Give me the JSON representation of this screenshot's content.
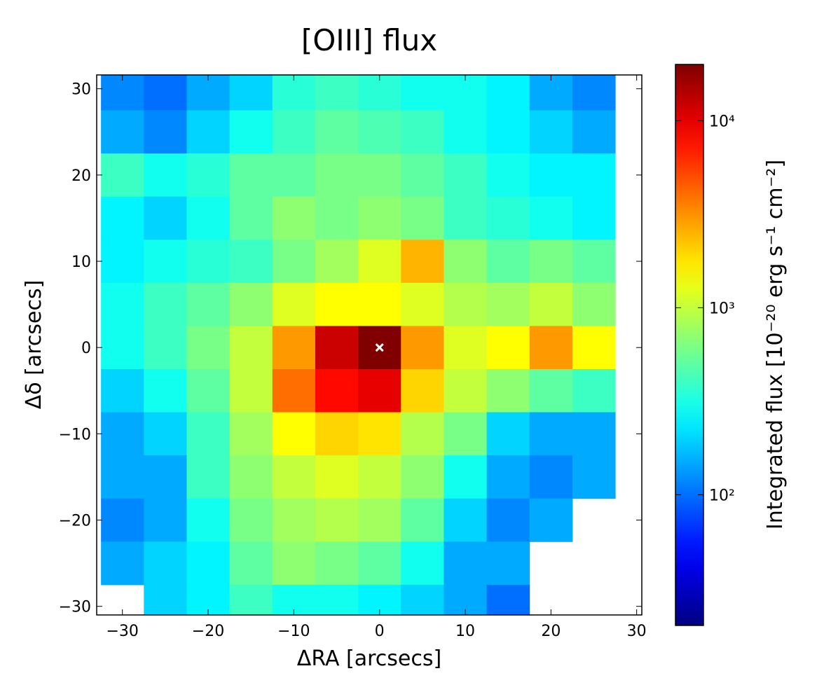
{
  "chart_data": {
    "type": "heatmap",
    "title": "[OIII] flux",
    "x_label": "ΔRA [arcsecs]",
    "y_label": "Δδ [arcsecs]",
    "colorbar_label": "Integrated flux [10⁻²⁰ erg s⁻¹ cm⁻²]",
    "x": [
      -30,
      -25,
      -20,
      -15,
      -10,
      -5,
      0,
      5,
      10,
      15,
      20,
      25
    ],
    "y": [
      30,
      25,
      20,
      15,
      10,
      5,
      0,
      -5,
      -10,
      -15,
      -20,
      -25,
      -30
    ],
    "values": [
      [
        120,
        100,
        150,
        200,
        350,
        400,
        350,
        300,
        300,
        250,
        150,
        120
      ],
      [
        150,
        120,
        200,
        300,
        400,
        500,
        450,
        400,
        300,
        250,
        200,
        150
      ],
      [
        400,
        300,
        350,
        500,
        500,
        600,
        600,
        500,
        400,
        300,
        250,
        250
      ],
      [
        250,
        200,
        300,
        500,
        700,
        600,
        700,
        600,
        400,
        350,
        300,
        250
      ],
      [
        250,
        300,
        350,
        400,
        600,
        800,
        1200,
        2500,
        700,
        500,
        600,
        500
      ],
      [
        300,
        400,
        500,
        700,
        1200,
        1500,
        1500,
        1200,
        900,
        800,
        1000,
        700
      ],
      [
        300,
        400,
        600,
        1000,
        3000,
        12000,
        20000,
        3000,
        1200,
        1500,
        3000,
        1500
      ],
      [
        200,
        300,
        500,
        1000,
        4000,
        8000,
        10000,
        2000,
        1000,
        700,
        500,
        400
      ],
      [
        150,
        200,
        400,
        800,
        1500,
        2000,
        1800,
        900,
        600,
        200,
        150,
        150
      ],
      [
        150,
        150,
        400,
        700,
        1000,
        1200,
        1000,
        700,
        300,
        150,
        120,
        150
      ],
      [
        120,
        150,
        300,
        600,
        800,
        900,
        800,
        500,
        200,
        120,
        150,
        null
      ],
      [
        150,
        200,
        250,
        500,
        700,
        600,
        500,
        300,
        150,
        150,
        null,
        null
      ],
      [
        null,
        200,
        250,
        400,
        300,
        300,
        250,
        200,
        150,
        100,
        null,
        null
      ]
    ],
    "cell_size": 5,
    "marker": {
      "x": 0,
      "y": 0,
      "color": "#ffffff"
    },
    "xlim": [
      -33,
      30.6
    ],
    "ylim": [
      -31,
      31.6
    ],
    "xticks": [
      {
        "value": -30,
        "label": "−30"
      },
      {
        "value": -20,
        "label": "−20"
      },
      {
        "value": -10,
        "label": "−10"
      },
      0,
      10,
      20,
      30
    ],
    "yticks": [
      {
        "value": -30,
        "label": "−30"
      },
      {
        "value": -20,
        "label": "−20"
      },
      {
        "value": -10,
        "label": "−10"
      },
      0,
      10,
      20,
      30
    ],
    "colormap": "jet",
    "color_scale": "log",
    "clim": [
      20,
      20000
    ],
    "cticks": [
      {
        "value": 100,
        "label": "10²"
      },
      {
        "value": 1000,
        "label": "10³"
      },
      {
        "value": 10000,
        "label": "10⁴"
      }
    ]
  }
}
